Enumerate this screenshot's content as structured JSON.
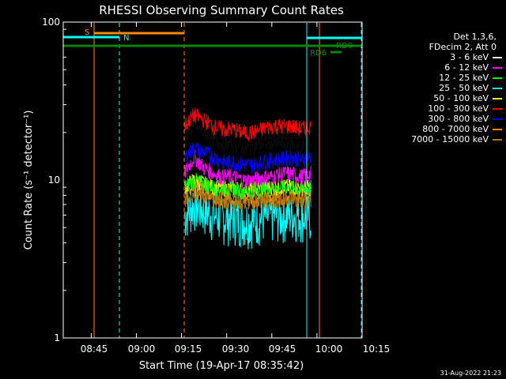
{
  "chart_data": {
    "type": "line",
    "title": "RHESSI Observing Summary Count Rates",
    "xlabel": "Start Time (19-Apr-17 08:35:42)",
    "ylabel": "Count Rate (s⁻¹ detector⁻¹)",
    "yscale": "log",
    "xlim": [
      "08:35:42",
      "10:15:00"
    ],
    "ylim": [
      1,
      100
    ],
    "x_ticks": [
      "08:45",
      "09:00",
      "09:15",
      "09:30",
      "09:45",
      "10:00",
      "10:15"
    ],
    "y_ticks": [
      "1",
      "10",
      "100"
    ],
    "grid": false,
    "legend_position": "right",
    "legend_header": [
      "Det 1,3,6,",
      "FDecim 2, Att 0"
    ],
    "series": [
      {
        "name": "3 - 6 keV",
        "color": "#000000",
        "start": "09:16",
        "end": "09:58",
        "values": [
          18,
          22,
          20,
          18,
          17,
          17,
          16,
          16,
          17,
          17,
          17,
          17,
          16,
          17
        ]
      },
      {
        "name": "6 - 12 keV",
        "color": "#ff00ff",
        "start": "09:16",
        "end": "09:58",
        "values": [
          11,
          14,
          12,
          11,
          10.5,
          10.5,
          10,
          10,
          10.5,
          10.5,
          11,
          11,
          10.5,
          11
        ]
      },
      {
        "name": "12 - 25 keV",
        "color": "#00ff00",
        "start": "09:16",
        "end": "09:58",
        "values": [
          9,
          10,
          9.5,
          9,
          8.8,
          8.8,
          8.6,
          8.6,
          8.8,
          8.9,
          9,
          9,
          8.8,
          9
        ]
      },
      {
        "name": "25 - 50 keV",
        "color": "#00ffff",
        "start": "09:16",
        "end": "09:58",
        "values": [
          6,
          7,
          6.5,
          6,
          5.8,
          5.8,
          5.6,
          5.6,
          5.8,
          5.9,
          6,
          6.1,
          6,
          6
        ]
      },
      {
        "name": "50 - 100 keV",
        "color": "#ffff00",
        "start": "09:16",
        "end": "09:58",
        "values": [
          9,
          10,
          9.5,
          9,
          8.9,
          8.9,
          8.8,
          8.8,
          8.9,
          9,
          9.1,
          9.1,
          9,
          9
        ]
      },
      {
        "name": "100 - 300 keV",
        "color": "#ff0000",
        "start": "09:16",
        "end": "09:58",
        "values": [
          22,
          26,
          24,
          22,
          21,
          21,
          20,
          20,
          21,
          22,
          22,
          22,
          21,
          22
        ]
      },
      {
        "name": "300 - 800 keV",
        "color": "#0000ff",
        "start": "09:16",
        "end": "09:58",
        "values": [
          14,
          16,
          15,
          14,
          13,
          13,
          12.5,
          12.5,
          13,
          13.5,
          13.5,
          14,
          13.5,
          14
        ]
      },
      {
        "name": "800 - 7000 keV",
        "color": "#ff8800",
        "start": "09:16",
        "end": "09:58",
        "values": [
          8,
          9,
          8.5,
          8,
          7.8,
          7.8,
          7.6,
          7.6,
          7.8,
          7.8,
          7.9,
          8,
          7.9,
          8
        ]
      },
      {
        "name": "7000 - 15000 keV",
        "color": "#aa7700",
        "start": "09:16",
        "end": "09:58",
        "values": [
          7.5,
          8.5,
          8,
          7.5,
          7.3,
          7.3,
          7.2,
          7.2,
          7.3,
          7.4,
          7.5,
          7.5,
          7.4,
          7.5
        ]
      }
    ],
    "annotations": [
      {
        "label": "S",
        "color": "#ff8800"
      },
      {
        "label": "N",
        "color": "#00ffff"
      },
      {
        "label": "RD0",
        "color": "#008800"
      },
      {
        "label": "RD6",
        "color": "#008800"
      }
    ]
  },
  "footer_date": "31-Aug-2022 21:23"
}
